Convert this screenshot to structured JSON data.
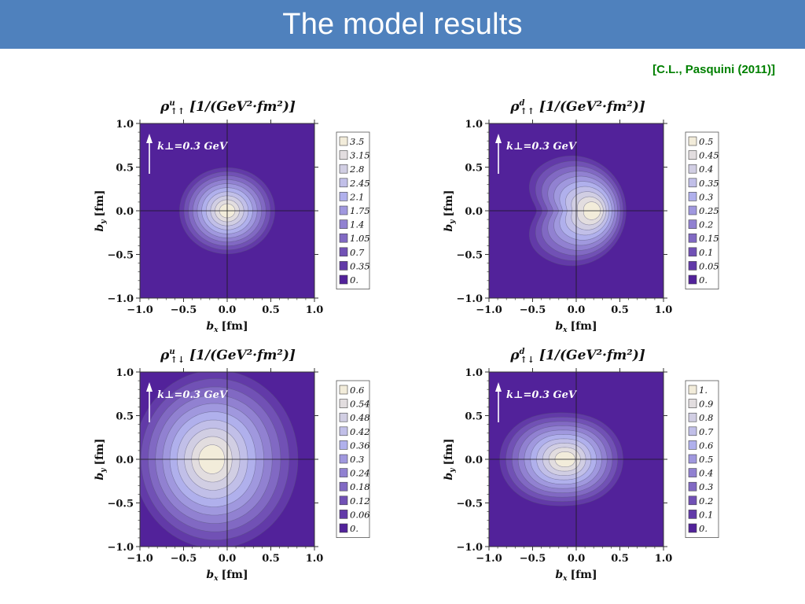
{
  "header": {
    "title": "The model results"
  },
  "citation": "[C.L., Pasquini (2011)]",
  "colors": {
    "header_bg": "#4f81bd",
    "citation": "#008000",
    "plot_background": "#52229a",
    "contour_light": "#f2ecda"
  },
  "chart_data": [
    {
      "type": "contour",
      "title_symbol": "ρ",
      "title_flavor": "u",
      "title_spin": "↑↑",
      "title_units": "[1/(GeV²·fm²)]",
      "xlabel": "b",
      "xlabel_sub": "x",
      "xlabel_units": "[fm]",
      "ylabel": "b",
      "ylabel_sub": "y",
      "ylabel_units": "[fm]",
      "xlim": [
        -1.0,
        1.0
      ],
      "ylim": [
        -1.0,
        1.0
      ],
      "x_ticks": [
        "−1.0",
        "−0.5",
        "0.0",
        "0.5",
        "1.0"
      ],
      "y_ticks": [
        "1.0",
        "0.5",
        "0.0",
        "−0.5",
        "−1.0"
      ],
      "annotation": "k⊥=0.3 GeV",
      "legend_levels": [
        "3.5",
        "3.15",
        "2.8",
        "2.45",
        "2.1",
        "1.75",
        "1.4",
        "1.05",
        "0.7",
        "0.35",
        "0."
      ],
      "peak_location": [
        0.0,
        0.0
      ]
    },
    {
      "type": "contour",
      "title_symbol": "ρ",
      "title_flavor": "d",
      "title_spin": "↑↑",
      "title_units": "[1/(GeV²·fm²)]",
      "xlabel": "b",
      "xlabel_sub": "x",
      "xlabel_units": "[fm]",
      "ylabel": "b",
      "ylabel_sub": "y",
      "ylabel_units": "[fm]",
      "xlim": [
        -1.0,
        1.0
      ],
      "ylim": [
        -1.0,
        1.0
      ],
      "x_ticks": [
        "−1.0",
        "−0.5",
        "0.0",
        "0.5",
        "1.0"
      ],
      "y_ticks": [
        "1.0",
        "0.5",
        "0.0",
        "−0.5",
        "−1.0"
      ],
      "annotation": "k⊥=0.3 GeV",
      "legend_levels": [
        "0.5",
        "0.45",
        "0.4",
        "0.35",
        "0.3",
        "0.25",
        "0.2",
        "0.15",
        "0.1",
        "0.05",
        "0."
      ],
      "peak_location": [
        0.22,
        0.0
      ]
    },
    {
      "type": "contour",
      "title_symbol": "ρ",
      "title_flavor": "u",
      "title_spin": "↑↓",
      "title_units": "[1/(GeV²·fm²)]",
      "xlabel": "b",
      "xlabel_sub": "x",
      "xlabel_units": "[fm]",
      "ylabel": "b",
      "ylabel_sub": "y",
      "ylabel_units": "[fm]",
      "xlim": [
        -1.0,
        1.0
      ],
      "ylim": [
        -1.0,
        1.0
      ],
      "x_ticks": [
        "−1.0",
        "−0.5",
        "0.0",
        "0.5",
        "1.0"
      ],
      "y_ticks": [
        "1.0",
        "0.5",
        "0.0",
        "−0.5",
        "−1.0"
      ],
      "annotation": "k⊥=0.3 GeV",
      "legend_levels": [
        "0.6",
        "0.54",
        "0.48",
        "0.42",
        "0.36",
        "0.3",
        "0.24",
        "0.18",
        "0.12",
        "0.06",
        "0."
      ],
      "peak_location": [
        -0.18,
        0.0
      ]
    },
    {
      "type": "contour",
      "title_symbol": "ρ",
      "title_flavor": "d",
      "title_spin": "↑↓",
      "title_units": "[1/(GeV²·fm²)]",
      "xlabel": "b",
      "xlabel_sub": "x",
      "xlabel_units": "[fm]",
      "ylabel": "b",
      "ylabel_sub": "y",
      "ylabel_units": "[fm]",
      "xlim": [
        -1.0,
        1.0
      ],
      "ylim": [
        -1.0,
        1.0
      ],
      "x_ticks": [
        "−1.0",
        "−0.5",
        "0.0",
        "0.5",
        "1.0"
      ],
      "y_ticks": [
        "1.0",
        "0.5",
        "0.0",
        "−0.5",
        "−1.0"
      ],
      "annotation": "k⊥=0.3 GeV",
      "legend_levels": [
        "1.",
        "0.9",
        "0.8",
        "0.7",
        "0.6",
        "0.5",
        "0.4",
        "0.3",
        "0.2",
        "0.1",
        "0."
      ],
      "peak_location": [
        -0.12,
        0.0
      ]
    }
  ]
}
